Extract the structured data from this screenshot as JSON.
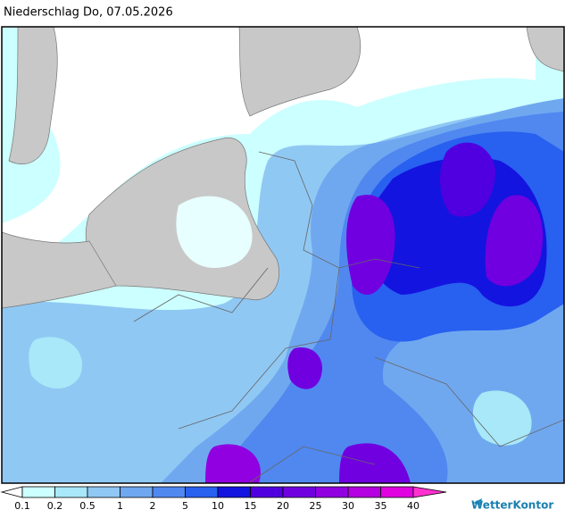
{
  "title": "Niederschlag Do, 07.05.2026",
  "legend": {
    "ticks": [
      0.1,
      0.2,
      0.5,
      1,
      2,
      5,
      10,
      15,
      20,
      25,
      30,
      35,
      40
    ],
    "colors": [
      "#ffffff",
      "#ccffff",
      "#a8e8f8",
      "#90c8f4",
      "#70a8f0",
      "#5088f0",
      "#2860f0",
      "#1414e0",
      "#5000e0",
      "#7000e0",
      "#9000e0",
      "#b400e0",
      "#e000e0",
      "#ff30d0"
    ]
  },
  "brand": "WetterKontor"
}
